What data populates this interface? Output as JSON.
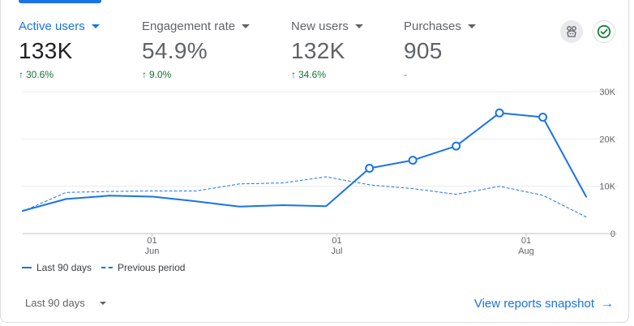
{
  "metrics": [
    {
      "label": "Active users",
      "value": "133K",
      "delta": "30.6%",
      "active": true
    },
    {
      "label": "Engagement rate",
      "value": "54.9%",
      "delta": "9.0%",
      "active": false
    },
    {
      "label": "New users",
      "value": "132K",
      "delta": "34.6%",
      "active": false
    },
    {
      "label": "Purchases",
      "value": "905",
      "delta": "-",
      "active": false
    }
  ],
  "icons": {
    "insights": "insights-icon",
    "check": "check-circle-icon"
  },
  "colors": {
    "accent": "#1a73e8",
    "positive": "#137333",
    "check": "#188038"
  },
  "legend": {
    "current": "Last 90 days",
    "previous": "Previous period"
  },
  "footer": {
    "range_label": "Last 90 days",
    "link_label": "View reports snapshot"
  },
  "chart_data": {
    "type": "line",
    "yticks": [
      "30K",
      "20K",
      "10K",
      "0"
    ],
    "ylim": [
      0,
      30000
    ],
    "xticks": [
      {
        "day": "01",
        "month": "Jun"
      },
      {
        "day": "01",
        "month": "Jul"
      },
      {
        "day": "01",
        "month": "Aug"
      }
    ],
    "series": [
      {
        "name": "Last 90 days",
        "style": "solid",
        "values": [
          4800,
          7300,
          8000,
          7800,
          6800,
          5700,
          6000,
          5800,
          13800,
          15500,
          18500,
          25500,
          24600,
          7800
        ],
        "markers": [
          false,
          false,
          false,
          false,
          false,
          false,
          false,
          false,
          true,
          true,
          true,
          true,
          true,
          false
        ]
      },
      {
        "name": "Previous period",
        "style": "dashed",
        "values": [
          4700,
          8700,
          8900,
          9000,
          9000,
          10500,
          10700,
          12000,
          10300,
          9500,
          8300,
          10000,
          8100,
          3500
        ]
      }
    ]
  }
}
